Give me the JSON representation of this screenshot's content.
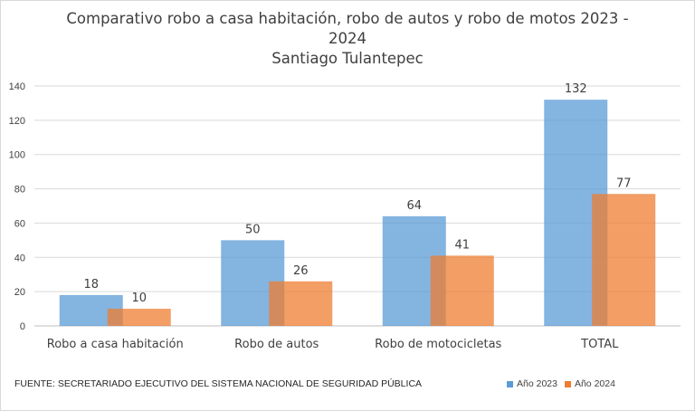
{
  "chart_data": {
    "type": "bar",
    "title_lines": [
      "Comparativo robo a casa habitación, robo de autos y robo de motos 2023 -",
      "2024",
      "Santiago Tulantepec"
    ],
    "categories": [
      "Robo a casa habitación",
      "Robo de autos",
      "Robo de motocicletas",
      "TOTAL"
    ],
    "series": [
      {
        "name": "Año 2023",
        "values": [
          18,
          50,
          64,
          132
        ],
        "color": "#5b9bd5"
      },
      {
        "name": "Año 2024",
        "values": [
          10,
          26,
          41,
          77
        ],
        "color": "#ed7d31"
      }
    ],
    "ylim": [
      0,
      140
    ],
    "yticks": [
      "0",
      "20",
      "40",
      "60",
      "80",
      "100",
      "120",
      "140"
    ],
    "grid": true,
    "legend_position": "bottom-right",
    "data_labels": true
  },
  "source_note": "FUENTE: SECRETARIADO EJECUTIVO DEL SISTEMA NACIONAL DE SEGURIDAD PÚBLICA",
  "colors": {
    "text": "#404040",
    "grid": "#d9d9d9",
    "axis": "#bfbfbf"
  }
}
